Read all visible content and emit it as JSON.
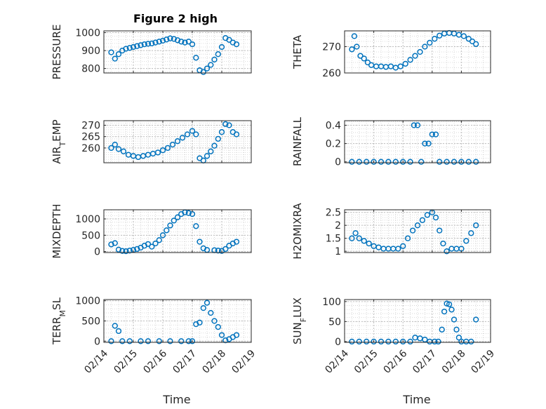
{
  "figure_title": "Figure 2 high",
  "xlabel": "Time",
  "colors": {
    "marker": "#0072BD",
    "axis": "#262626",
    "grid": "#d0d0d0"
  },
  "chart_data": [
    {
      "type": "scatter",
      "ylabel": "PRESSURE",
      "ylabel_parts": [
        [
          "PRESSURE",
          ""
        ]
      ],
      "xticks": [],
      "ylim": [
        775,
        1010
      ],
      "yticks": [
        "800",
        "900",
        "1000"
      ],
      "x": [
        "02/14 06:00",
        "02/14 09:00",
        "02/14 12:00",
        "02/14 15:00",
        "02/14 18:00",
        "02/14 21:00",
        "02/15 00:00",
        "02/15 03:00",
        "02/15 06:00",
        "02/15 09:00",
        "02/15 12:00",
        "02/15 15:00",
        "02/15 18:00",
        "02/15 21:00",
        "02/16 00:00",
        "02/16 03:00",
        "02/16 06:00",
        "02/16 09:00",
        "02/16 12:00",
        "02/16 15:00",
        "02/16 18:00",
        "02/16 21:00",
        "02/17 00:00",
        "02/17 03:00",
        "02/17 06:00",
        "02/17 09:00",
        "02/17 12:00",
        "02/17 15:00",
        "02/17 18:00",
        "02/17 21:00",
        "02/18 00:00",
        "02/18 03:00",
        "02/18 06:00",
        "02/18 09:00",
        "02/18 12:00"
      ],
      "y": [
        890,
        855,
        880,
        900,
        910,
        915,
        920,
        925,
        930,
        935,
        938,
        940,
        945,
        950,
        955,
        962,
        968,
        965,
        958,
        950,
        945,
        950,
        935,
        860,
        790,
        780,
        800,
        820,
        850,
        880,
        920,
        970,
        960,
        945,
        935
      ]
    },
    {
      "type": "scatter",
      "ylabel": "THETA",
      "ylabel_parts": [
        [
          "THETA",
          ""
        ]
      ],
      "xticks": [],
      "ylim": [
        260,
        276
      ],
      "yticks": [
        "260",
        "270"
      ],
      "x": [
        "02/14 06:00",
        "02/14 08:00",
        "02/14 10:00",
        "02/14 13:00",
        "02/14 16:00",
        "02/14 19:00",
        "02/14 22:00",
        "02/15 02:00",
        "02/15 06:00",
        "02/15 10:00",
        "02/15 14:00",
        "02/15 18:00",
        "02/15 22:00",
        "02/16 02:00",
        "02/16 06:00",
        "02/16 10:00",
        "02/16 14:00",
        "02/16 18:00",
        "02/16 22:00",
        "02/17 02:00",
        "02/17 06:00",
        "02/17 10:00",
        "02/17 14:00",
        "02/17 18:00",
        "02/17 22:00",
        "02/18 02:00",
        "02/18 06:00",
        "02/18 09:00",
        "02/18 12:00"
      ],
      "y": [
        269,
        274,
        270,
        266.5,
        265.5,
        264,
        263,
        262.5,
        262.5,
        262.3,
        262.5,
        262,
        262.5,
        263.5,
        265,
        266.5,
        268,
        270,
        271.5,
        273,
        274.2,
        275,
        275.2,
        275,
        274.5,
        274,
        273,
        272,
        271
      ]
    },
    {
      "type": "scatter",
      "ylabel": "AIR_TEMP",
      "ylabel_parts": [
        [
          "AIR",
          ""
        ],
        [
          "T",
          "sub"
        ],
        [
          "EMP",
          ""
        ]
      ],
      "xticks": [],
      "ylim": [
        253.5,
        272
      ],
      "yticks": [
        "260",
        "265",
        "270"
      ],
      "x": [
        "02/14 06:00",
        "02/14 09:00",
        "02/14 12:00",
        "02/14 16:00",
        "02/14 20:00",
        "02/15 00:00",
        "02/15 04:00",
        "02/15 08:00",
        "02/15 12:00",
        "02/15 16:00",
        "02/15 20:00",
        "02/16 00:00",
        "02/16 04:00",
        "02/16 08:00",
        "02/16 12:00",
        "02/16 16:00",
        "02/16 20:00",
        "02/17 00:00",
        "02/17 03:00",
        "02/17 06:00",
        "02/17 09:00",
        "02/17 12:00",
        "02/17 15:00",
        "02/17 18:00",
        "02/17 21:00",
        "02/18 00:00",
        "02/18 03:00",
        "02/18 06:00",
        "02/18 09:00",
        "02/18 12:00"
      ],
      "y": [
        260,
        261.5,
        259.5,
        258.5,
        257,
        256.5,
        256,
        256.5,
        257,
        257.5,
        258,
        259,
        260,
        261.5,
        263,
        264.5,
        266,
        267.5,
        266,
        255.5,
        254.5,
        256.5,
        258.5,
        261,
        264,
        267,
        270.5,
        270,
        267,
        266
      ]
    },
    {
      "type": "scatter",
      "ylabel": "RAINFALL",
      "ylabel_parts": [
        [
          "RAINFALL",
          ""
        ]
      ],
      "xticks": [],
      "ylim": [
        -0.01,
        0.45
      ],
      "yticks": [
        "0",
        "0.2",
        "0.4"
      ],
      "x": [
        "02/14 06:00",
        "02/14 12:00",
        "02/14 18:00",
        "02/15 00:00",
        "02/15 06:00",
        "02/15 12:00",
        "02/15 18:00",
        "02/16 00:00",
        "02/16 06:00",
        "02/16 09:00",
        "02/16 12:00",
        "02/16 15:00",
        "02/16 18:00",
        "02/16 21:00",
        "02/17 00:00",
        "02/17 03:00",
        "02/17 06:00",
        "02/17 12:00",
        "02/17 18:00",
        "02/18 00:00",
        "02/18 06:00",
        "02/18 12:00"
      ],
      "y": [
        0,
        0,
        0,
        0,
        0,
        0,
        0,
        0,
        0,
        0.4,
        0.4,
        0,
        0.2,
        0.2,
        0.3,
        0.3,
        0,
        0,
        0,
        0,
        0,
        0
      ]
    },
    {
      "type": "scatter",
      "ylabel": "MIXDEPTH",
      "ylabel_parts": [
        [
          "MIXDEPTH",
          ""
        ]
      ],
      "xticks": [],
      "ylim": [
        -30,
        1280
      ],
      "yticks": [
        "0",
        "500",
        "1000"
      ],
      "x": [
        "02/14 06:00",
        "02/14 09:00",
        "02/14 12:00",
        "02/14 15:00",
        "02/14 18:00",
        "02/14 21:00",
        "02/15 00:00",
        "02/15 03:00",
        "02/15 06:00",
        "02/15 09:00",
        "02/15 12:00",
        "02/15 15:00",
        "02/15 18:00",
        "02/15 21:00",
        "02/16 00:00",
        "02/16 03:00",
        "02/16 06:00",
        "02/16 09:00",
        "02/16 12:00",
        "02/16 15:00",
        "02/16 18:00",
        "02/16 21:00",
        "02/17 00:00",
        "02/17 03:00",
        "02/17 06:00",
        "02/17 09:00",
        "02/17 12:00",
        "02/17 18:00",
        "02/17 21:00",
        "02/18 00:00",
        "02/18 03:00",
        "02/18 06:00",
        "02/18 09:00",
        "02/18 12:00"
      ],
      "y": [
        220,
        260,
        60,
        20,
        10,
        30,
        50,
        80,
        120,
        180,
        230,
        150,
        250,
        350,
        500,
        650,
        800,
        950,
        1050,
        1150,
        1200,
        1180,
        1150,
        780,
        300,
        100,
        50,
        40,
        30,
        20,
        80,
        180,
        250,
        300
      ]
    },
    {
      "type": "scatter",
      "ylabel": "H2OMIXRA",
      "ylabel_parts": [
        [
          "H2OMIXRA",
          ""
        ]
      ],
      "xticks": [],
      "ylim": [
        0.95,
        2.6
      ],
      "yticks": [
        "1",
        "1.5",
        "2",
        "2.5"
      ],
      "x": [
        "02/14 06:00",
        "02/14 09:00",
        "02/14 12:00",
        "02/14 16:00",
        "02/14 20:00",
        "02/15 00:00",
        "02/15 04:00",
        "02/15 08:00",
        "02/15 12:00",
        "02/15 16:00",
        "02/15 20:00",
        "02/16 00:00",
        "02/16 04:00",
        "02/16 08:00",
        "02/16 12:00",
        "02/16 16:00",
        "02/16 20:00",
        "02/17 00:00",
        "02/17 03:00",
        "02/17 06:00",
        "02/17 09:00",
        "02/17 12:00",
        "02/17 16:00",
        "02/17 20:00",
        "02/18 00:00",
        "02/18 04:00",
        "02/18 08:00",
        "02/18 12:00"
      ],
      "y": [
        1.5,
        1.7,
        1.5,
        1.4,
        1.3,
        1.2,
        1.15,
        1.1,
        1.1,
        1.1,
        1.1,
        1.2,
        1.5,
        1.8,
        2.0,
        2.2,
        2.4,
        2.5,
        2.3,
        1.8,
        1.3,
        1.0,
        1.1,
        1.1,
        1.1,
        1.4,
        1.7,
        2.0
      ]
    },
    {
      "type": "scatter",
      "ylabel": "TERR_MSL",
      "ylabel_parts": [
        [
          "TERR",
          ""
        ],
        [
          "M",
          "sub"
        ],
        [
          "SL",
          ""
        ]
      ],
      "xticks": [
        "02/14",
        "02/15",
        "02/16",
        "02/17",
        "02/18",
        "02/19"
      ],
      "ylim": [
        -30,
        1030
      ],
      "yticks": [
        "0",
        "500",
        "1000"
      ],
      "x": [
        "02/14 06:00",
        "02/14 09:00",
        "02/14 12:00",
        "02/14 15:00",
        "02/14 21:00",
        "02/15 06:00",
        "02/15 12:00",
        "02/15 21:00",
        "02/16 06:00",
        "02/16 15:00",
        "02/16 21:00",
        "02/17 00:00",
        "02/17 03:00",
        "02/17 06:00",
        "02/17 09:00",
        "02/17 12:00",
        "02/17 15:00",
        "02/17 18:00",
        "02/17 21:00",
        "02/18 00:00",
        "02/18 03:00",
        "02/18 06:00",
        "02/18 09:00",
        "02/18 12:00"
      ],
      "y": [
        0,
        380,
        250,
        0,
        0,
        0,
        0,
        0,
        0,
        0,
        0,
        0,
        420,
        460,
        820,
        950,
        700,
        500,
        350,
        150,
        20,
        50,
        100,
        150
      ]
    },
    {
      "type": "scatter",
      "ylabel": "SUN_FLUX",
      "ylabel_parts": [
        [
          "SUN",
          ""
        ],
        [
          "F",
          "sub"
        ],
        [
          "LUX",
          ""
        ]
      ],
      "xticks": [
        "02/14",
        "02/15",
        "02/16",
        "02/17",
        "02/18",
        "02/19"
      ],
      "ylim": [
        -2,
        105
      ],
      "yticks": [
        "0",
        "50",
        "100"
      ],
      "x": [
        "02/14 06:00",
        "02/14 12:00",
        "02/14 18:00",
        "02/15 00:00",
        "02/15 06:00",
        "02/15 12:00",
        "02/15 18:00",
        "02/16 00:00",
        "02/16 06:00",
        "02/16 10:00",
        "02/16 14:00",
        "02/16 18:00",
        "02/16 22:00",
        "02/17 02:00",
        "02/17 05:00",
        "02/17 08:00",
        "02/17 10:00",
        "02/17 12:00",
        "02/17 14:00",
        "02/17 16:00",
        "02/17 18:00",
        "02/17 20:00",
        "02/17 22:00",
        "02/18 00:00",
        "02/18 04:00",
        "02/18 08:00",
        "02/18 12:00"
      ],
      "y": [
        0,
        0,
        0,
        0,
        0,
        0,
        0,
        0,
        0,
        10,
        8,
        5,
        0,
        0,
        0,
        30,
        75,
        95,
        93,
        80,
        55,
        30,
        10,
        0,
        0,
        0,
        55
      ]
    }
  ]
}
